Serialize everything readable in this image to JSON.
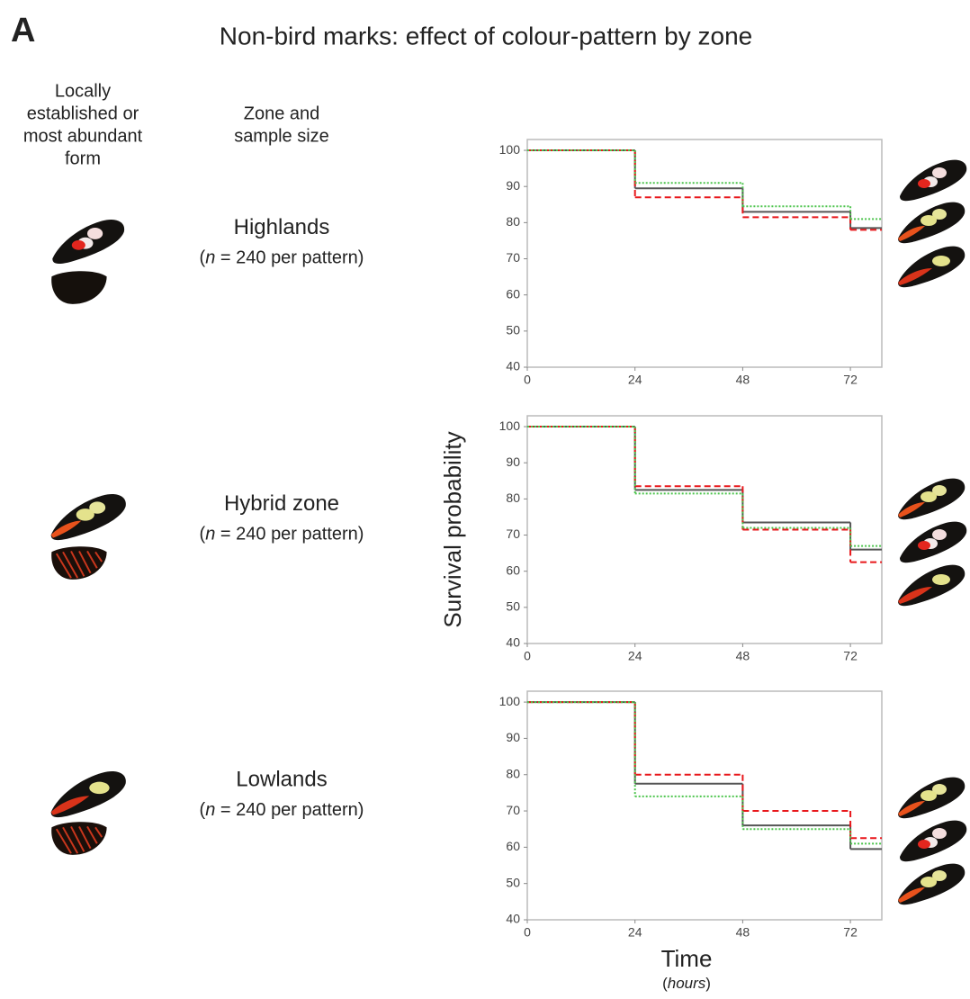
{
  "header": {
    "panel": "A",
    "title": "Non-bird  marks: effect of colour-pattern by zone"
  },
  "columns": [
    {
      "lines": [
        "Locally",
        "established or",
        "most abundant",
        "form"
      ]
    },
    {
      "lines": [
        "Zone and",
        "sample size"
      ]
    }
  ],
  "chart_data": [
    {
      "type": "step",
      "zone": "Highlands",
      "sample_size": [
        "(",
        "n",
        " = 240 per pattern)"
      ],
      "x": [
        0,
        24,
        48,
        72
      ],
      "xlim": [
        0,
        79
      ],
      "xticks": [
        0,
        24,
        48,
        72
      ],
      "ylim": [
        40,
        103
      ],
      "yticks": [
        40,
        50,
        60,
        70,
        80,
        90,
        100
      ],
      "series": [
        {
          "color": "#555555",
          "dash": "solid",
          "values": [
            100,
            89.5,
            83,
            78.5
          ]
        },
        {
          "color": "#e8171b",
          "dash": "dashed",
          "values": [
            100,
            87,
            81.5,
            78
          ]
        },
        {
          "color": "#4cc44c",
          "dash": "dotted",
          "values": [
            100,
            91,
            84.5,
            81
          ]
        }
      ]
    },
    {
      "type": "step",
      "zone": "Hybrid zone",
      "sample_size": [
        "(",
        "n",
        " = 240 per pattern)"
      ],
      "y_label": "Survival probability",
      "x": [
        0,
        24,
        48,
        72
      ],
      "xlim": [
        0,
        79
      ],
      "xticks": [
        0,
        24,
        48,
        72
      ],
      "ylim": [
        40,
        103
      ],
      "yticks": [
        40,
        50,
        60,
        70,
        80,
        90,
        100
      ],
      "series": [
        {
          "color": "#555555",
          "dash": "solid",
          "values": [
            100,
            82.5,
            73.5,
            66
          ]
        },
        {
          "color": "#e8171b",
          "dash": "dashed",
          "values": [
            100,
            83.5,
            71.5,
            62.5
          ]
        },
        {
          "color": "#4cc44c",
          "dash": "dotted",
          "values": [
            100,
            81.5,
            72,
            67
          ]
        }
      ]
    },
    {
      "type": "step",
      "zone": "Lowlands",
      "sample_size": [
        "(",
        "n",
        " = 240 per pattern)"
      ],
      "x_label": "Time",
      "x_sublabel": [
        "(",
        "hours",
        ")"
      ],
      "x": [
        0,
        24,
        48,
        72
      ],
      "xlim": [
        0,
        79
      ],
      "xticks": [
        0,
        24,
        48,
        72
      ],
      "ylim": [
        40,
        103
      ],
      "yticks": [
        40,
        50,
        60,
        70,
        80,
        90,
        100
      ],
      "series": [
        {
          "color": "#555555",
          "dash": "solid",
          "values": [
            100,
            77.5,
            66,
            59.5
          ]
        },
        {
          "color": "#e8171b",
          "dash": "dashed",
          "values": [
            100,
            80,
            70,
            62.5
          ]
        },
        {
          "color": "#4cc44c",
          "dash": "dotted",
          "values": [
            100,
            74,
            65,
            61
          ]
        }
      ]
    }
  ]
}
